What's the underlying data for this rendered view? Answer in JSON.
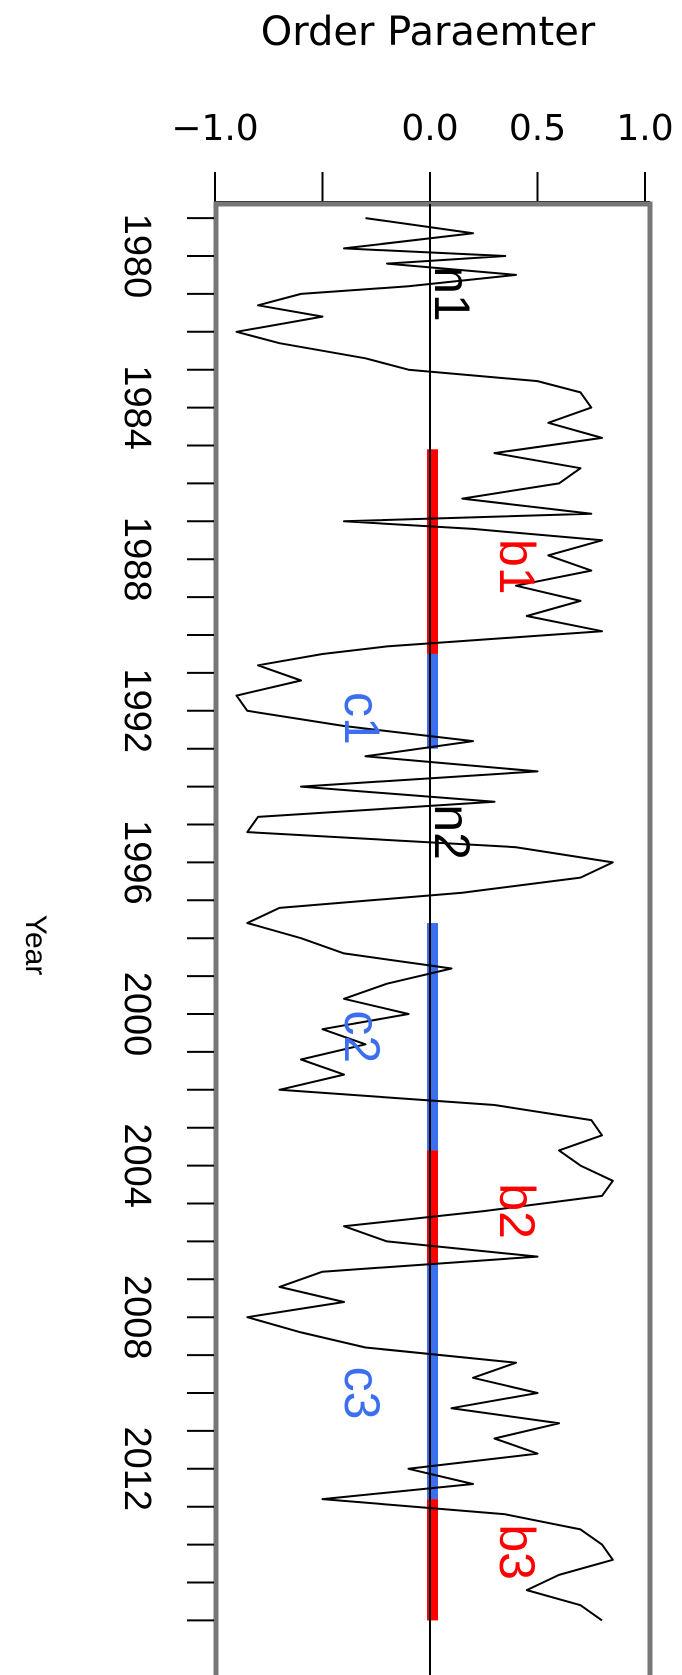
{
  "chart_data": {
    "type": "line",
    "orientation": "rotated-90-clockwise",
    "title": "Order Paraemter",
    "ylabel": "Year",
    "value_ticks": [
      "−1.0",
      "0.0",
      "0.5",
      "1.0"
    ],
    "value_tick_values": [
      -1.0,
      0.0,
      0.5,
      1.0
    ],
    "value_range": [
      -1.0,
      1.0
    ],
    "year_ticks": [
      "1980",
      "1984",
      "1988",
      "1992",
      "1996",
      "2000",
      "2004",
      "2008",
      "2012"
    ],
    "year_tick_values": [
      1980,
      1984,
      1988,
      1992,
      1996,
      2000,
      2004,
      2008,
      2012
    ],
    "year_range": [
      1979,
      2016
    ],
    "series": [
      {
        "x": [
          1979.0,
          1979.4,
          1979.8,
          1980.0,
          1980.2,
          1980.5,
          1980.8,
          1981.0,
          1981.3,
          1981.6,
          1982.0,
          1982.3,
          1982.7,
          1983.0,
          1983.3,
          1983.6,
          1984.0,
          1984.4,
          1984.8,
          1985.2,
          1985.6,
          1986.0,
          1986.4,
          1986.8,
          1987.0,
          1987.2,
          1987.5,
          1987.9,
          1988.3,
          1988.7,
          1989.1,
          1989.5,
          1989.9,
          1990.3,
          1990.5,
          1990.8,
          1991.2,
          1991.6,
          1992.0,
          1992.4,
          1992.8,
          1993.2,
          1993.6,
          1994.0,
          1994.4,
          1994.8,
          1995.2,
          1995.6,
          1996.0,
          1996.4,
          1996.8,
          1997.2,
          1997.6,
          1998.0,
          1998.4,
          1998.8,
          1999.2,
          1999.6,
          2000.0,
          2000.4,
          2000.8,
          2001.2,
          2001.6,
          2002.0,
          2002.4,
          2002.8,
          2003.2,
          2003.6,
          2004.0,
          2004.4,
          2004.8,
          2005.2,
          2005.6,
          2006.0,
          2006.4,
          2006.8,
          2007.2,
          2007.6,
          2008.0,
          2008.4,
          2008.8,
          2009.2,
          2009.6,
          2010.0,
          2010.4,
          2010.8,
          2011.2,
          2011.6,
          2012.0,
          2012.4,
          2012.8,
          2013.2,
          2013.6,
          2014.0,
          2014.4,
          2014.8,
          2015.2,
          2015.6,
          2016.0
        ],
        "y": [
          -0.3,
          0.2,
          -0.4,
          0.35,
          -0.2,
          0.4,
          -0.1,
          -0.6,
          -0.8,
          -0.5,
          -0.9,
          -0.7,
          -0.3,
          -0.1,
          0.5,
          0.7,
          0.75,
          0.55,
          0.8,
          0.3,
          0.7,
          0.6,
          0.15,
          0.75,
          -0.4,
          0.2,
          0.8,
          0.55,
          0.75,
          0.4,
          0.7,
          0.45,
          0.8,
          -0.2,
          -0.5,
          -0.8,
          -0.6,
          -0.9,
          -0.85,
          -0.4,
          0.2,
          -0.3,
          0.5,
          -0.6,
          0.3,
          -0.8,
          -0.85,
          0.4,
          0.85,
          0.7,
          0.15,
          -0.7,
          -0.85,
          -0.6,
          -0.4,
          0.1,
          -0.2,
          -0.4,
          -0.1,
          -0.5,
          -0.3,
          -0.6,
          -0.4,
          -0.7,
          0.3,
          0.75,
          0.8,
          0.6,
          0.7,
          0.85,
          0.8,
          0.25,
          -0.4,
          -0.2,
          0.5,
          -0.5,
          -0.7,
          -0.4,
          -0.85,
          -0.6,
          -0.3,
          0.4,
          0.2,
          0.5,
          0.1,
          0.6,
          0.3,
          0.5,
          -0.1,
          0.2,
          -0.5,
          0.35,
          0.7,
          0.8,
          0.85,
          0.6,
          0.45,
          0.7,
          0.8
        ]
      }
    ],
    "segments": [
      {
        "label": "b1",
        "start": 1985.1,
        "end": 1990.5,
        "color": "#ff0000"
      },
      {
        "label": "c1",
        "start": 1990.5,
        "end": 1993.0,
        "color": "#3b6ff0"
      },
      {
        "label": "c2",
        "start": 1997.6,
        "end": 2003.6,
        "color": "#3b6ff0"
      },
      {
        "label": "b2",
        "start": 2003.6,
        "end": 2006.6,
        "color": "#ff0000"
      },
      {
        "label": "c3",
        "start": 2006.6,
        "end": 2012.8,
        "color": "#3b6ff0"
      },
      {
        "label": "b3",
        "start": 2012.8,
        "end": 2016.0,
        "color": "#ff0000"
      }
    ],
    "annotations": [
      {
        "text": "n1",
        "year": 1981.0,
        "color": "#000000"
      },
      {
        "text": "b1",
        "year": 1988.2,
        "color": "#ff0000"
      },
      {
        "text": "c1",
        "year": 1992.2,
        "color": "#3b6ff0"
      },
      {
        "text": "n2",
        "year": 1995.2,
        "color": "#000000"
      },
      {
        "text": "c2",
        "year": 2000.6,
        "color": "#3b6ff0"
      },
      {
        "text": "b2",
        "year": 2005.2,
        "color": "#ff0000"
      },
      {
        "text": "c3",
        "year": 2010.0,
        "color": "#3b6ff0"
      },
      {
        "text": "b3",
        "year": 2014.2,
        "color": "#ff0000"
      }
    ],
    "grid": false,
    "legend": "none"
  }
}
